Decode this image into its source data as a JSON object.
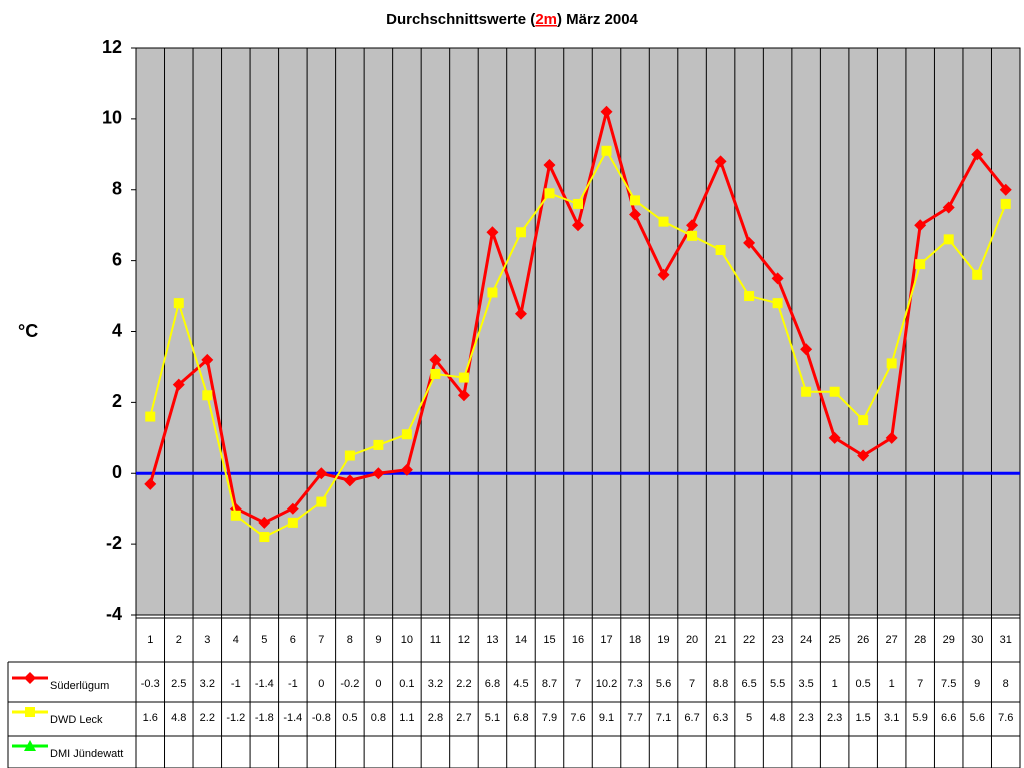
{
  "chart_data": {
    "type": "line",
    "title": [
      "Durchschnittswerte (",
      "2m",
      ") März 2004"
    ],
    "title_highlight_color": "#ff0000",
    "y_label": "°C",
    "categories": [
      "1",
      "2",
      "3",
      "4",
      "5",
      "6",
      "7",
      "8",
      "9",
      "10",
      "11",
      "12",
      "13",
      "14",
      "15",
      "16",
      "17",
      "18",
      "19",
      "20",
      "21",
      "22",
      "23",
      "24",
      "25",
      "26",
      "27",
      "28",
      "29",
      "30",
      "31"
    ],
    "series": [
      {
        "name": "Süderlügum",
        "color": "#ff0000",
        "marker": "diamond",
        "values": [
          -0.3,
          2.5,
          3.2,
          -1,
          -1.4,
          -1,
          0,
          -0.2,
          0,
          0.1,
          3.2,
          2.2,
          6.8,
          4.5,
          8.7,
          7,
          10.2,
          7.3,
          5.6,
          7,
          8.8,
          6.5,
          5.5,
          3.5,
          1,
          0.5,
          1,
          7,
          7.5,
          9,
          8
        ]
      },
      {
        "name": "DWD Leck",
        "color": "#ffff00",
        "marker": "square",
        "values": [
          1.6,
          4.8,
          2.2,
          -1.2,
          -1.8,
          -1.4,
          -0.8,
          0.5,
          0.8,
          1.1,
          2.8,
          2.7,
          5.1,
          6.8,
          7.9,
          7.6,
          9.1,
          7.7,
          7.1,
          6.7,
          6.3,
          5,
          4.8,
          2.3,
          2.3,
          1.5,
          3.1,
          5.9,
          6.6,
          5.6,
          7.6
        ]
      },
      {
        "name": "DMI Jündewatt",
        "color": "#00ff00",
        "marker": "triangle",
        "values": [
          null,
          null,
          null,
          null,
          null,
          null,
          null,
          null,
          null,
          null,
          null,
          null,
          null,
          null,
          null,
          null,
          null,
          null,
          null,
          null,
          null,
          null,
          null,
          null,
          null,
          null,
          null,
          null,
          null,
          null,
          null
        ]
      }
    ],
    "ylim": [
      -4,
      12
    ],
    "yticks": [
      -4,
      -2,
      0,
      2,
      4,
      6,
      8,
      10,
      12
    ],
    "zero_line_color": "#0000ff",
    "plot_background": "#c0c0c0",
    "data_table": true
  }
}
